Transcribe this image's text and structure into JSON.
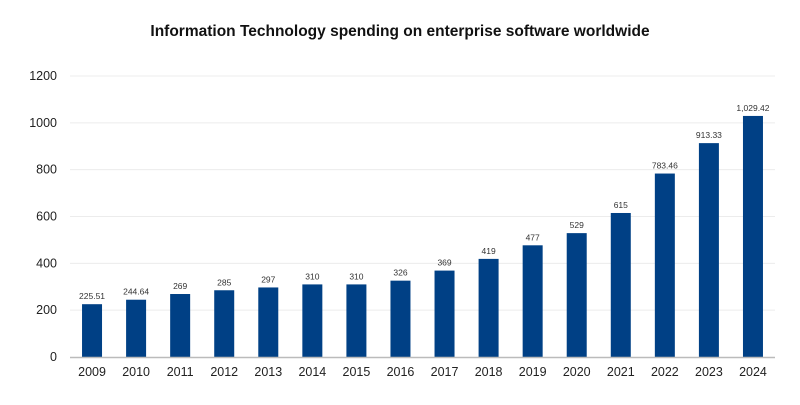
{
  "chart_data": {
    "type": "bar",
    "title": "Information Technology spending on enterprise software worldwide",
    "xlabel": "",
    "ylabel": "",
    "categories": [
      "2009",
      "2010",
      "2011",
      "2012",
      "2013",
      "2014",
      "2015",
      "2016",
      "2017",
      "2018",
      "2019",
      "2020",
      "2021",
      "2022",
      "2023",
      "2024"
    ],
    "values": [
      225.51,
      244.64,
      269,
      285,
      297,
      310,
      310,
      326,
      369,
      419,
      477,
      529,
      615,
      783.46,
      913.33,
      1029.42
    ],
    "value_labels": [
      "225.51",
      "244.64",
      "269",
      "285",
      "297",
      "310",
      "310",
      "326",
      "369",
      "419",
      "477",
      "529",
      "615",
      "783.46",
      "913.33",
      "1,029.42"
    ],
    "ylim": [
      0,
      1200
    ],
    "yticks": [
      "0",
      "200",
      "400",
      "600",
      "800",
      "1000",
      "1200"
    ],
    "grid": true,
    "bar_color": "#004085"
  }
}
